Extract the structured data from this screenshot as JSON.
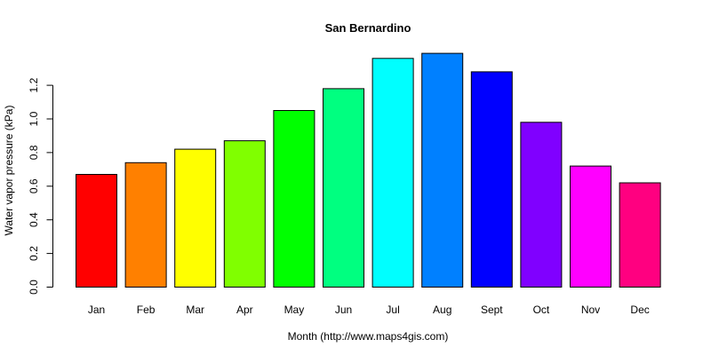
{
  "chart_data": {
    "type": "bar",
    "title": "San Bernardino",
    "xlabel": "Month (http://www.maps4gis.com)",
    "ylabel": "Water vapor pressure (kPa)",
    "categories": [
      "Jan",
      "Feb",
      "Mar",
      "Apr",
      "May",
      "Jun",
      "Jul",
      "Aug",
      "Sept",
      "Oct",
      "Nov",
      "Dec"
    ],
    "values": [
      0.67,
      0.74,
      0.82,
      0.87,
      1.05,
      1.18,
      1.36,
      1.39,
      1.28,
      0.98,
      0.72,
      0.62
    ],
    "colors": [
      "#FF0000",
      "#FF8000",
      "#FFFF00",
      "#80FF00",
      "#00FF00",
      "#00FF80",
      "#00FFFF",
      "#0080FF",
      "#0000FF",
      "#8000FF",
      "#FF00FF",
      "#FF0080"
    ],
    "yticks": [
      0.0,
      0.2,
      0.4,
      0.6,
      0.8,
      1.0,
      1.2
    ],
    "ytick_labels": [
      "0.0",
      "0.2",
      "0.4",
      "0.6",
      "0.8",
      "1.0",
      "1.2"
    ],
    "ylim": [
      0,
      1.4
    ],
    "grid": false,
    "legend": "none"
  }
}
